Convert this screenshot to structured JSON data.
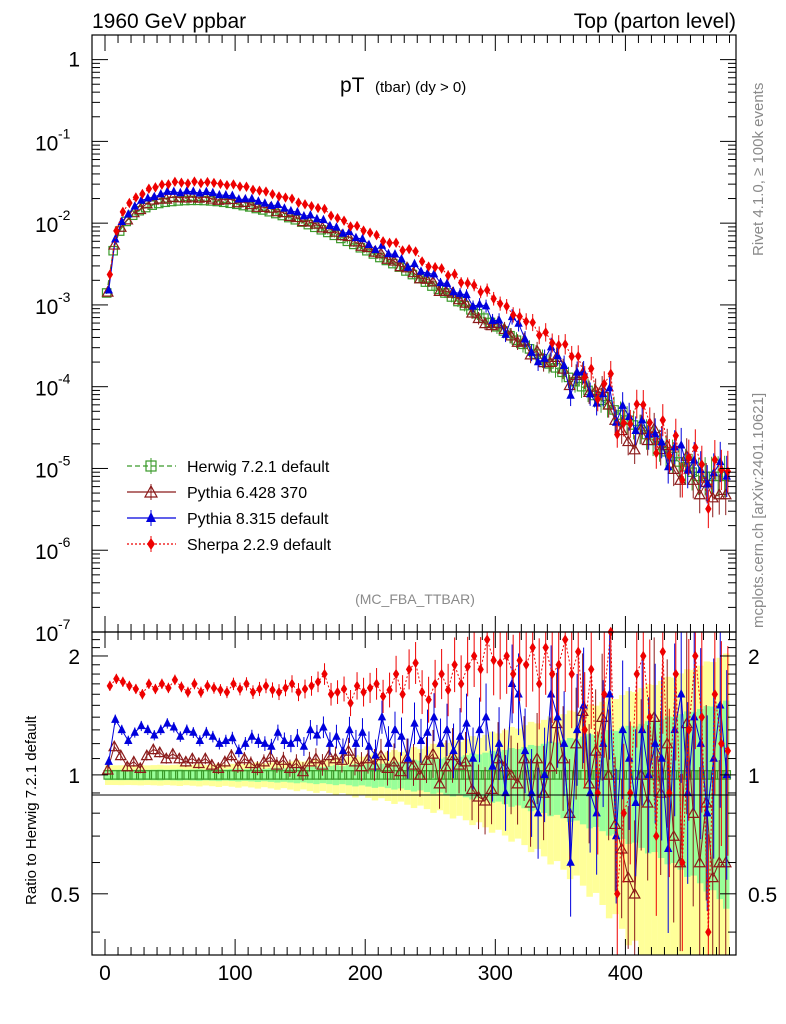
{
  "header": {
    "left": "1960 GeV ppbar",
    "right": "Top (parton level)"
  },
  "side_labels": {
    "rivet": "Rivet 4.1.0, ≥ 100k events",
    "mcplots": "mcplots.cern.ch [arXiv:2401.10621]"
  },
  "chart_data": {
    "type": "line",
    "title_main": "pT",
    "title_sub": "(tbar) (dy > 0)",
    "analysis": "(MC_FBA_TTBAR)",
    "xlim": [
      -10,
      485
    ],
    "main_ylim": [
      1e-07,
      2
    ],
    "main_ytick_labels": [
      "1",
      "10",
      "-1",
      "10",
      "-2",
      "10",
      "-3",
      "10",
      "-4",
      "10",
      "-5",
      "10",
      "-6",
      "10",
      "-7"
    ],
    "ratio_ylabel": "Ratio to Herwig 7.2.1 default",
    "ratio_ylim": [
      0.35,
      2.3
    ],
    "ratio_ytick_labels": [
      "2",
      "1",
      "0.5"
    ],
    "xtick_labels": [
      "0",
      "100",
      "200",
      "300",
      "400"
    ],
    "x": [
      2.5,
      7.5,
      12.5,
      17.5,
      22.5,
      27.5,
      32.5,
      37.5,
      42.5,
      47.5,
      52.5,
      57.5,
      62.5,
      67.5,
      72.5,
      77.5,
      82.5,
      87.5,
      92.5,
      97.5,
      102.5,
      107.5,
      112.5,
      117.5,
      122.5,
      127.5,
      132.5,
      137.5,
      142.5,
      147.5,
      152.5,
      157.5,
      162.5,
      167.5,
      172.5,
      177.5,
      182.5,
      187.5,
      192.5,
      197.5,
      202.5,
      207.5,
      212.5,
      217.5,
      222.5,
      227.5,
      232.5,
      237.5,
      242.5,
      247.5,
      252.5,
      257.5,
      262.5,
      267.5,
      272.5,
      277.5,
      282.5,
      287.5,
      292.5,
      297.5,
      302.5,
      307.5,
      312.5,
      317.5,
      322.5,
      327.5,
      332.5,
      337.5,
      342.5,
      347.5,
      352.5,
      357.5,
      362.5,
      367.5,
      372.5,
      377.5,
      382.5,
      387.5,
      392.5,
      397.5,
      402.5,
      407.5,
      412.5,
      417.5,
      422.5,
      427.5,
      432.5,
      437.5,
      442.5,
      447.5,
      452.5,
      457.5,
      462.5,
      467.5,
      472.5,
      477.5
    ],
    "series": [
      {
        "name": "Herwig 7.2.1 default",
        "color": "#3a9a2a",
        "marker": "open-square",
        "line": "dashed",
        "values": [
          0.0014,
          0.0046,
          0.008,
          0.0105,
          0.0125,
          0.0142,
          0.0155,
          0.0166,
          0.0174,
          0.018,
          0.0184,
          0.0187,
          0.0189,
          0.019,
          0.019,
          0.0189,
          0.0187,
          0.0184,
          0.018,
          0.0175,
          0.017,
          0.0164,
          0.0158,
          0.0151,
          0.0145,
          0.0138,
          0.0131,
          0.0124,
          0.0117,
          0.011,
          0.0103,
          0.0096,
          0.0089,
          0.0083,
          0.0077,
          0.0071,
          0.0065,
          0.006,
          0.0055,
          0.005,
          0.0046,
          0.0042,
          0.0038,
          0.0035,
          0.0032,
          0.0029,
          0.0026,
          0.00235,
          0.0021,
          0.0019,
          0.0017,
          0.00155,
          0.0014,
          0.00125,
          0.0011,
          0.00098,
          0.00087,
          0.00078,
          0.00069,
          0.00061,
          0.00054,
          0.00048,
          0.00042,
          0.00037,
          0.00033,
          0.00029,
          0.00025,
          0.00022,
          0.00019,
          0.00017,
          0.00015,
          0.00013,
          0.000115,
          0.0001,
          9e-05,
          7.8e-05,
          6.8e-05,
          6e-05,
          5.2e-05,
          4.5e-05,
          3.9e-05,
          3.4e-05,
          3e-05,
          2.6e-05,
          2.2e-05,
          1.9e-05,
          1.6e-05,
          1.4e-05,
          1.2e-05,
          1.05e-05,
          9e-06,
          8e-06,
          8e-06,
          8e-06,
          8e-06,
          8e-06
        ],
        "ratio": [
          1.0,
          1.0,
          1.0,
          1.0,
          1.0,
          1.0,
          1.0,
          1.0,
          1.0,
          1.0,
          1.0,
          1.0,
          1.0,
          1.0,
          1.0,
          1.0,
          1.0,
          1.0,
          1.0,
          1.0,
          1.0,
          1.0,
          1.0,
          1.0,
          1.0,
          1.0,
          1.0,
          1.0,
          1.0,
          1.0,
          1.0,
          1.0,
          1.0,
          1.0,
          1.0,
          1.0,
          1.0,
          1.0,
          1.0,
          1.0,
          1.0,
          1.0,
          1.0,
          1.0,
          1.0,
          1.0,
          1.0,
          1.0,
          1.0,
          1.0,
          1.0,
          1.0,
          1.0,
          1.0,
          1.0,
          1.0,
          1.0,
          1.0,
          1.0,
          1.0,
          1.0,
          1.0,
          1.0,
          1.0,
          1.0,
          1.0,
          1.0,
          1.0,
          1.0,
          1.0,
          1.0,
          1.0,
          1.0,
          1.0,
          1.0,
          1.0,
          1.0,
          1.0,
          1.0,
          1.0,
          1.0,
          1.0,
          1.0,
          1.0,
          1.0,
          1.0,
          1.0,
          1.0,
          1.0,
          1.0,
          1.0,
          1.0,
          1.0,
          1.0,
          1.0,
          1.0
        ]
      },
      {
        "name": "Pythia 6.428 370",
        "color": "#8b1a1a",
        "marker": "open-triangle",
        "line": "solid",
        "ratio": [
          1.03,
          1.18,
          1.12,
          1.05,
          1.08,
          1.04,
          1.12,
          1.16,
          1.14,
          1.1,
          1.13,
          1.1,
          1.08,
          1.1,
          1.07,
          1.1,
          1.06,
          1.04,
          1.08,
          1.12,
          1.05,
          1.1,
          1.07,
          1.04,
          1.08,
          1.11,
          1.06,
          1.09,
          1.04,
          1.07,
          1.02,
          1.08,
          1.1,
          1.06,
          1.12,
          1.1,
          1.09,
          1.15,
          1.08,
          1.05,
          1.1,
          1.06,
          1.12,
          1.04,
          1.08,
          1.02,
          1.1,
          1.06,
          1.0,
          1.09,
          1.13,
          0.95,
          1.05,
          1.12,
          1.06,
          1.08,
          0.92,
          0.88,
          0.86,
          0.92,
          1.1,
          1.05,
          1.0,
          0.95,
          1.1,
          0.85,
          1.1,
          0.9,
          1.05,
          1.35,
          1.1,
          0.8,
          1.2,
          1.45,
          0.95,
          1.15,
          1.4,
          1.0,
          0.75,
          0.65,
          0.55,
          0.5,
          1.0,
          0.85,
          1.4,
          0.9,
          1.2,
          0.7,
          0.6,
          1.35,
          0.8,
          0.6,
          0.85,
          0.55,
          0.6,
          0.6
        ]
      },
      {
        "name": "Pythia 8.315 default",
        "color": "#0000dd",
        "marker": "filled-triangle",
        "line": "solid",
        "ratio": [
          1.08,
          1.38,
          1.3,
          1.22,
          1.28,
          1.33,
          1.3,
          1.26,
          1.3,
          1.35,
          1.32,
          1.25,
          1.3,
          1.28,
          1.22,
          1.28,
          1.25,
          1.2,
          1.22,
          1.24,
          1.15,
          1.2,
          1.25,
          1.22,
          1.2,
          1.18,
          1.28,
          1.22,
          1.2,
          1.24,
          1.18,
          1.3,
          1.26,
          1.32,
          1.2,
          1.25,
          1.15,
          1.3,
          1.2,
          1.28,
          1.18,
          1.12,
          1.4,
          1.2,
          1.3,
          1.25,
          1.1,
          1.35,
          1.22,
          1.28,
          1.4,
          1.2,
          1.3,
          1.15,
          1.25,
          1.35,
          1.1,
          1.3,
          1.4,
          1.05,
          1.2,
          0.9,
          1.7,
          1.6,
          1.15,
          0.9,
          0.8,
          1.0,
          1.6,
          1.4,
          1.2,
          0.6,
          1.3,
          1.5,
          0.9,
          0.8,
          1.2,
          1.6,
          0.7,
          1.3,
          1.1,
          0.85,
          1.3,
          1.0,
          1.2,
          1.1,
          0.65,
          1.3,
          1.6,
          0.9,
          1.4,
          1.2,
          0.8,
          1.1,
          1.5,
          1.0
        ]
      },
      {
        "name": "Sherpa 2.2.9 default",
        "color": "#ee0000",
        "marker": "filled-diamond",
        "line": "dotted",
        "ratio": [
          1.68,
          1.75,
          1.72,
          1.68,
          1.65,
          1.6,
          1.7,
          1.65,
          1.7,
          1.66,
          1.74,
          1.67,
          1.62,
          1.7,
          1.62,
          1.68,
          1.66,
          1.64,
          1.62,
          1.7,
          1.65,
          1.7,
          1.62,
          1.65,
          1.68,
          1.64,
          1.62,
          1.66,
          1.7,
          1.62,
          1.65,
          1.68,
          1.72,
          1.8,
          1.6,
          1.62,
          1.65,
          1.52,
          1.68,
          1.62,
          1.66,
          1.7,
          1.58,
          1.64,
          1.8,
          1.6,
          1.85,
          1.92,
          1.62,
          1.55,
          1.7,
          1.8,
          1.64,
          1.9,
          1.7,
          1.88,
          2.0,
          1.85,
          2.2,
          1.95,
          1.92,
          2.0,
          1.8,
          1.95,
          1.9,
          2.1,
          1.7,
          2.1,
          1.8,
          1.9,
          2.2,
          1.8,
          2.05,
          1.3,
          1.85,
          0.9,
          1.6,
          2.4,
          0.5,
          0.8,
          0.9,
          1.8,
          2.0,
          1.4,
          0.7,
          2.05,
          0.9,
          1.8,
          0.6,
          1.3,
          2.0,
          1.4,
          0.4,
          1.6,
          1.2,
          1.15
        ]
      }
    ]
  }
}
